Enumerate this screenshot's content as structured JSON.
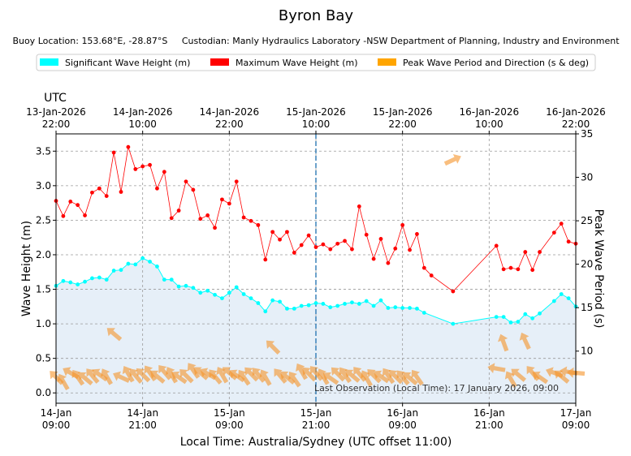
{
  "chart_data": {
    "type": "line",
    "title": "Byron Bay",
    "subtitle_location_label": "Buoy Location:",
    "subtitle_location": "153.68°E, -28.87°S",
    "subtitle_custodian_label": "Custodian:",
    "subtitle_custodian": "Manly Hydraulics Laboratory -NSW Department of Planning, Industry and Environment",
    "utc_label": "UTC",
    "xlabel": "Local Time: Australia/Sydney (UTC offset 11:00)",
    "ylabel": "Wave Height (m)",
    "ylabel_right": "Peak Wave Period (s)",
    "x_unit": "hours since 14-Jan 09:00 local",
    "xlim": [
      0,
      72
    ],
    "ylim": [
      -0.15,
      3.75
    ],
    "ylim_right": [
      4.0,
      35.0
    ],
    "yticks": [
      0.0,
      0.5,
      1.0,
      1.5,
      2.0,
      2.5,
      3.0,
      3.5
    ],
    "yticks_right": [
      10,
      15,
      20,
      25,
      30,
      35
    ],
    "grid": true,
    "bottom_ticks": [
      {
        "x": 0,
        "line1": "14-Jan",
        "line2": "09:00"
      },
      {
        "x": 12,
        "line1": "14-Jan",
        "line2": "21:00"
      },
      {
        "x": 24,
        "line1": "15-Jan",
        "line2": "09:00"
      },
      {
        "x": 36,
        "line1": "15-Jan",
        "line2": "21:00"
      },
      {
        "x": 48,
        "line1": "16-Jan",
        "line2": "09:00"
      },
      {
        "x": 60,
        "line1": "16-Jan",
        "line2": "21:00"
      },
      {
        "x": 72,
        "line1": "17-Jan",
        "line2": "09:00"
      }
    ],
    "top_ticks": [
      {
        "x": 0,
        "line1": "13-Jan-2026",
        "line2": "22:00"
      },
      {
        "x": 12,
        "line1": "14-Jan-2026",
        "line2": "10:00"
      },
      {
        "x": 24,
        "line1": "14-Jan-2026",
        "line2": "22:00"
      },
      {
        "x": 36,
        "line1": "15-Jan-2026",
        "line2": "10:00"
      },
      {
        "x": 48,
        "line1": "15-Jan-2026",
        "line2": "22:00"
      },
      {
        "x": 60,
        "line1": "16-Jan-2026",
        "line2": "10:00"
      },
      {
        "x": 72,
        "line1": "16-Jan-2026",
        "line2": "22:00"
      }
    ],
    "now_line_x": 36,
    "last_observation": "Last Observation (Local Time): 17 January 2026, 09:00",
    "legend": [
      {
        "name": "Significant Wave Height (m)",
        "color": "#00ffff"
      },
      {
        "name": "Maximum Wave Height (m)",
        "color": "#ff0000"
      },
      {
        "name": "Peak Wave Period and Direction (s & deg)",
        "color": "#ffa500"
      }
    ],
    "series": [
      {
        "name": "Significant Wave Height (m)",
        "color": "#00ffff",
        "x": [
          0,
          1,
          2,
          3,
          4,
          5,
          6,
          7,
          8,
          9,
          10,
          11,
          12,
          13,
          14,
          15,
          16,
          17,
          18,
          19,
          20,
          21,
          22,
          23,
          24,
          25,
          26,
          27,
          28,
          29,
          30,
          31,
          32,
          33,
          34,
          35,
          36,
          37,
          38,
          39,
          40,
          41,
          42,
          43,
          44,
          45,
          46,
          47,
          48,
          49,
          50,
          51,
          55,
          61,
          62,
          63,
          64,
          65,
          66,
          67,
          69,
          70,
          71,
          72
        ],
        "values": [
          1.55,
          1.62,
          1.6,
          1.57,
          1.61,
          1.66,
          1.67,
          1.64,
          1.77,
          1.78,
          1.87,
          1.86,
          1.95,
          1.9,
          1.83,
          1.64,
          1.64,
          1.54,
          1.55,
          1.52,
          1.45,
          1.48,
          1.42,
          1.37,
          1.45,
          1.53,
          1.43,
          1.37,
          1.3,
          1.18,
          1.34,
          1.32,
          1.22,
          1.22,
          1.26,
          1.27,
          1.3,
          1.29,
          1.24,
          1.26,
          1.29,
          1.31,
          1.29,
          1.33,
          1.26,
          1.34,
          1.23,
          1.24,
          1.23,
          1.23,
          1.22,
          1.16,
          1.0,
          1.1,
          1.1,
          1.02,
          1.03,
          1.14,
          1.08,
          1.15,
          1.33,
          1.43,
          1.37,
          1.25
        ]
      },
      {
        "name": "Maximum Wave Height (m)",
        "color": "#ff0000",
        "x": [
          0,
          1,
          2,
          3,
          4,
          5,
          6,
          7,
          8,
          9,
          10,
          11,
          12,
          13,
          14,
          15,
          16,
          17,
          18,
          19,
          20,
          21,
          22,
          23,
          24,
          25,
          26,
          27,
          28,
          29,
          30,
          31,
          32,
          33,
          34,
          35,
          36,
          37,
          38,
          39,
          40,
          41,
          42,
          43,
          44,
          45,
          46,
          47,
          48,
          49,
          50,
          51,
          52,
          55,
          61,
          62,
          63,
          64,
          65,
          66,
          67,
          69,
          70,
          71,
          72
        ],
        "values": [
          2.78,
          2.56,
          2.77,
          2.72,
          2.57,
          2.9,
          2.96,
          2.85,
          3.48,
          2.91,
          3.56,
          3.24,
          3.28,
          3.3,
          2.96,
          3.2,
          2.53,
          2.64,
          3.06,
          2.94,
          2.52,
          2.57,
          2.39,
          2.8,
          2.74,
          3.06,
          2.54,
          2.49,
          2.43,
          1.93,
          2.33,
          2.22,
          2.33,
          2.03,
          2.14,
          2.28,
          2.11,
          2.15,
          2.08,
          2.16,
          2.2,
          2.08,
          2.7,
          2.29,
          1.94,
          2.23,
          1.88,
          2.09,
          2.43,
          2.07,
          2.3,
          1.81,
          1.7,
          1.47,
          2.13,
          1.79,
          1.81,
          1.79,
          2.04,
          1.78,
          2.04,
          2.32,
          2.45,
          2.19,
          2.16
        ]
      }
    ],
    "period_arrows": {
      "name": "Peak Wave Period and Direction (s & deg)",
      "color": "#ffa500",
      "x": [
        0,
        1,
        2,
        3,
        4,
        5,
        6,
        7,
        8,
        9,
        10,
        11,
        12,
        13,
        14,
        15,
        16,
        17,
        18,
        19,
        20,
        21,
        22,
        23,
        24,
        25,
        26,
        27,
        28,
        29,
        30,
        31,
        32,
        33,
        34,
        35,
        36,
        37,
        38,
        39,
        40,
        41,
        42,
        43,
        44,
        45,
        46,
        47,
        48,
        49,
        50,
        55,
        61,
        62,
        63,
        64,
        65,
        66,
        67,
        69,
        70,
        71,
        72
      ],
      "period": [
        7.0,
        6.5,
        7.5,
        7.0,
        6.9,
        7.2,
        7.3,
        7.1,
        12.0,
        7.0,
        7.4,
        7.2,
        7.3,
        7.5,
        7.1,
        7.6,
        7.3,
        7.0,
        7.2,
        7.8,
        7.5,
        7.4,
        7.1,
        7.3,
        7.5,
        7.2,
        7.0,
        7.4,
        7.3,
        7.0,
        10.5,
        7.2,
        7.0,
        6.8,
        7.7,
        7.4,
        7.5,
        7.1,
        6.9,
        7.4,
        7.3,
        7.2,
        7.4,
        6.9,
        7.2,
        7.1,
        7.2,
        7.1,
        7.0,
        6.9,
        7.0,
        32.0,
        8.0,
        11.0,
        6.8,
        7.3,
        11.2,
        7.5,
        7.0,
        7.5,
        7.1,
        7.6,
        7.5
      ],
      "direction_deg": [
        135,
        150,
        120,
        145,
        130,
        140,
        125,
        150,
        130,
        115,
        150,
        140,
        135,
        145,
        130,
        140,
        150,
        125,
        135,
        145,
        130,
        120,
        140,
        150,
        130,
        125,
        145,
        135,
        140,
        150,
        135,
        140,
        130,
        145,
        150,
        135,
        140,
        150,
        125,
        135,
        145,
        130,
        140,
        150,
        135,
        125,
        145,
        135,
        140,
        130,
        145,
        245,
        100,
        160,
        150,
        130,
        155,
        140,
        125,
        110,
        130,
        100,
        95
      ]
    }
  }
}
